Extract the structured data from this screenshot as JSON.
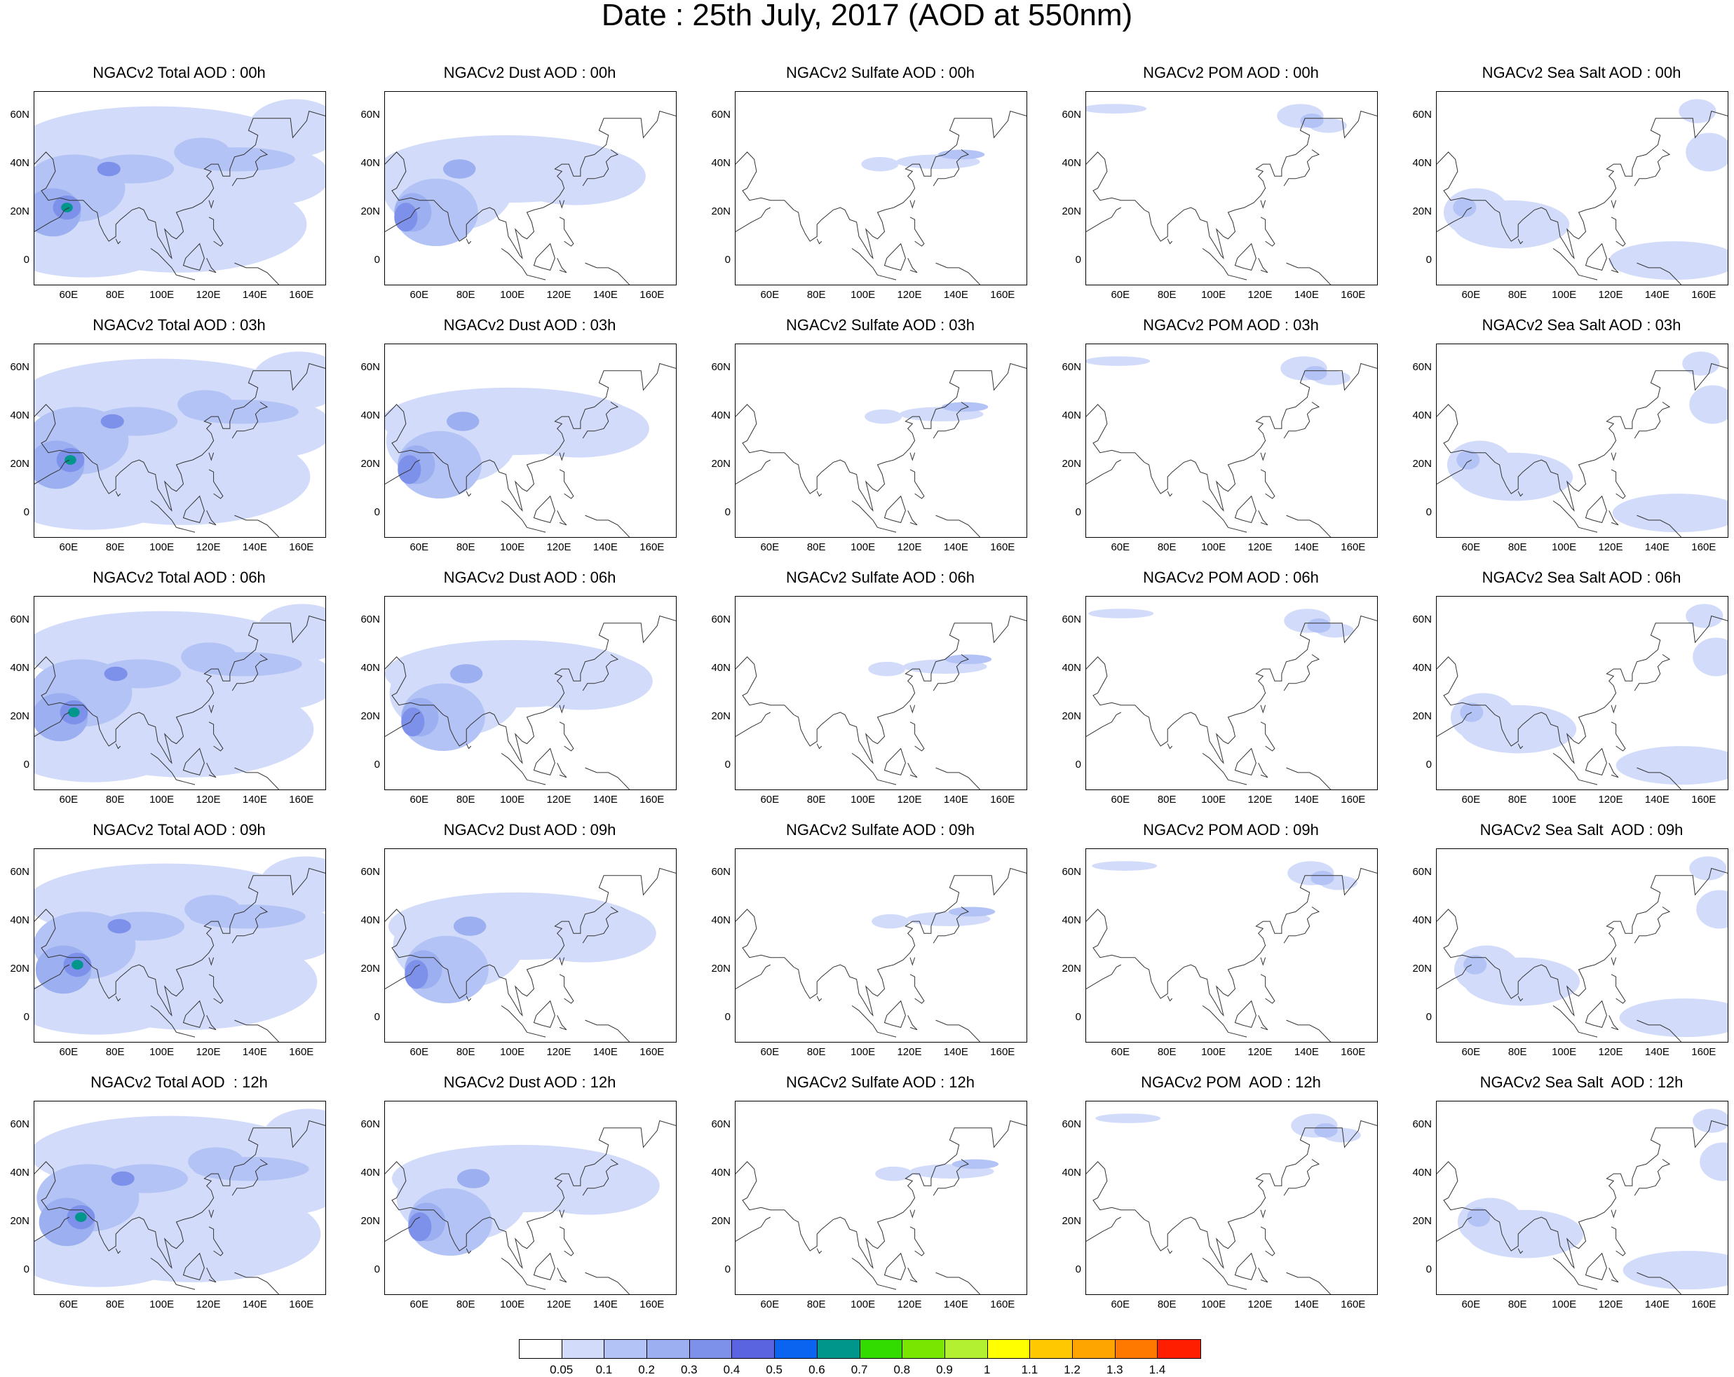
{
  "title": "Date : 25th July, 2017 (AOD at 550nm)",
  "panels": [
    [
      "NGACv2 Total AOD : 00h",
      "NGACv2 Dust AOD : 00h",
      "NGACv2 Sulfate AOD : 00h",
      "NGACv2 POM AOD : 00h",
      "NGACv2 Sea Salt AOD : 00h"
    ],
    [
      "NGACv2 Total AOD : 03h",
      "NGACv2 Dust AOD : 03h",
      "NGACv2 Sulfate AOD : 03h",
      "NGACv2 POM AOD : 03h",
      "NGACv2 Sea Salt AOD : 03h"
    ],
    [
      "NGACv2 Total AOD : 06h",
      "NGACv2 Dust AOD : 06h",
      "NGACv2 Sulfate AOD : 06h",
      "NGACv2 POM AOD : 06h",
      "NGACv2 Sea Salt AOD : 06h"
    ],
    [
      "NGACv2 Total AOD : 09h",
      "NGACv2 Dust AOD : 09h",
      "NGACv2 Sulfate AOD : 09h",
      "NGACv2 POM AOD : 09h",
      "NGACv2 Sea Salt  AOD : 09h"
    ],
    [
      "NGACv2 Total AOD  : 12h",
      "NGACv2 Dust AOD : 12h",
      "NGACv2 Sulfate AOD : 12h",
      "NGACv2 POM  AOD : 12h",
      "NGACv2 Sea Salt  AOD : 12h"
    ]
  ],
  "lat_labels": [
    "60N",
    "40N",
    "20N",
    "0"
  ],
  "lon_labels": [
    "60E",
    "80E",
    "100E",
    "120E",
    "140E",
    "160E"
  ],
  "colorbar": {
    "colors": [
      "#ffffff",
      "#d2dcfa",
      "#b4c3f5",
      "#9caff0",
      "#7d91eb",
      "#5a64e1",
      "#0a64f0",
      "#00968c",
      "#32dc00",
      "#78e600",
      "#b4f032",
      "#ffff00",
      "#ffc800",
      "#ffa500",
      "#ff7800",
      "#ff1e00"
    ],
    "labels": [
      "0.05",
      "0.1",
      "0.2",
      "0.3",
      "0.4",
      "0.5",
      "0.6",
      "0.7",
      "0.8",
      "0.9",
      "1",
      "1.1",
      "1.2",
      "1.3",
      "1.4"
    ]
  }
}
